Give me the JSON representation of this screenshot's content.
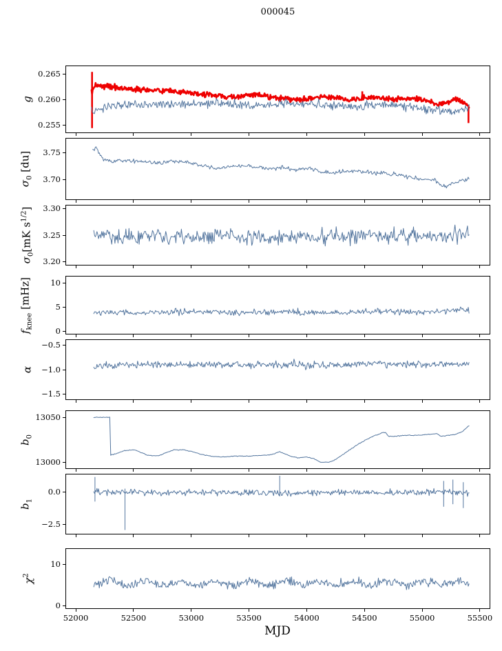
{
  "figure": {
    "title": "000045",
    "xlabel": "MJD"
  },
  "colors": {
    "blue": "#53759e",
    "red": "#ee0000",
    "axis": "#000000",
    "background": "#ffffff"
  },
  "x_axis": {
    "min": 51910,
    "max": 55590,
    "ticks": [
      {
        "v": 52000,
        "label": "52000"
      },
      {
        "v": 52500,
        "label": "52500"
      },
      {
        "v": 53000,
        "label": "53000"
      },
      {
        "v": 53500,
        "label": "53500"
      },
      {
        "v": 54000,
        "label": "54000"
      },
      {
        "v": 54500,
        "label": "54500"
      },
      {
        "v": 55000,
        "label": "55000"
      },
      {
        "v": 55500,
        "label": "55500"
      }
    ]
  },
  "chart_data": [
    {
      "name": "g",
      "type": "line",
      "ylabel": [
        {
          "t": "g",
          "italic": true
        }
      ],
      "ylim": [
        0.2535,
        0.2667
      ],
      "yticks": [
        {
          "v": 0.255,
          "label": "0.255"
        },
        {
          "v": 0.26,
          "label": "0.260"
        },
        {
          "v": 0.265,
          "label": "0.265"
        }
      ],
      "series": [
        {
          "name": "g-thick",
          "color": "red",
          "width": 2.6,
          "noise": 0.00045,
          "points": 650,
          "trend": [
            [
              52130,
              0.2615
            ],
            [
              52160,
              0.263
            ],
            [
              52250,
              0.2628
            ],
            [
              52500,
              0.2622
            ],
            [
              52800,
              0.2618
            ],
            [
              53100,
              0.2612
            ],
            [
              53350,
              0.2606
            ],
            [
              53550,
              0.2612
            ],
            [
              53750,
              0.2604
            ],
            [
              53950,
              0.2602
            ],
            [
              54150,
              0.2608
            ],
            [
              54350,
              0.2602
            ],
            [
              54550,
              0.2606
            ],
            [
              54750,
              0.2602
            ],
            [
              54950,
              0.2604
            ],
            [
              55050,
              0.2598
            ],
            [
              55150,
              0.2592
            ],
            [
              55250,
              0.26
            ],
            [
              55300,
              0.2604
            ],
            [
              55350,
              0.2596
            ],
            [
              55400,
              0.2588
            ]
          ],
          "spikes": [
            [
              52135,
              0.2546,
              0.2656
            ],
            [
              54475,
              0.26,
              0.2618
            ],
            [
              55395,
              0.2556,
              0.2592
            ]
          ]
        },
        {
          "name": "g-thin",
          "color": "blue",
          "width": 1,
          "noise": 0.00075,
          "points": 520,
          "trend": [
            [
              52130,
              0.2578
            ],
            [
              52300,
              0.259
            ],
            [
              52600,
              0.2594
            ],
            [
              52900,
              0.2592
            ],
            [
              53200,
              0.2596
            ],
            [
              53500,
              0.259
            ],
            [
              53800,
              0.2594
            ],
            [
              54100,
              0.2592
            ],
            [
              54400,
              0.2588
            ],
            [
              54700,
              0.2592
            ],
            [
              54900,
              0.2588
            ],
            [
              55100,
              0.2582
            ],
            [
              55250,
              0.2578
            ],
            [
              55400,
              0.2586
            ]
          ]
        }
      ]
    },
    {
      "name": "sigma0-du",
      "type": "line",
      "ylabel": [
        {
          "t": "σ",
          "italic": true
        },
        {
          "t": "0",
          "sub": true
        },
        {
          "t": " [du]"
        }
      ],
      "ylim": [
        3.662,
        3.778
      ],
      "yticks": [
        {
          "v": 3.7,
          "label": "3.70"
        },
        {
          "v": 3.75,
          "label": "3.75"
        }
      ],
      "series": [
        {
          "name": "sigma0-du",
          "color": "blue",
          "width": 1,
          "noise": 0.0032,
          "points": 450,
          "trend": [
            [
              52140,
              3.757
            ],
            [
              52170,
              3.762
            ],
            [
              52220,
              3.74
            ],
            [
              52300,
              3.735
            ],
            [
              52400,
              3.737
            ],
            [
              52500,
              3.736
            ],
            [
              52600,
              3.735
            ],
            [
              52700,
              3.733
            ],
            [
              52800,
              3.735
            ],
            [
              52900,
              3.736
            ],
            [
              53000,
              3.733
            ],
            [
              53100,
              3.727
            ],
            [
              53200,
              3.723
            ],
            [
              53300,
              3.725
            ],
            [
              53400,
              3.728
            ],
            [
              53500,
              3.726
            ],
            [
              53600,
              3.723
            ],
            [
              53700,
              3.722
            ],
            [
              53800,
              3.723
            ],
            [
              53900,
              3.72
            ],
            [
              54000,
              3.722
            ],
            [
              54100,
              3.717
            ],
            [
              54200,
              3.714
            ],
            [
              54300,
              3.716
            ],
            [
              54400,
              3.717
            ],
            [
              54500,
              3.716
            ],
            [
              54600,
              3.713
            ],
            [
              54700,
              3.712
            ],
            [
              54800,
              3.71
            ],
            [
              54900,
              3.705
            ],
            [
              55000,
              3.702
            ],
            [
              55100,
              3.7
            ],
            [
              55150,
              3.693
            ],
            [
              55200,
              3.688
            ],
            [
              55250,
              3.692
            ],
            [
              55300,
              3.697
            ],
            [
              55350,
              3.7
            ],
            [
              55400,
              3.702
            ]
          ]
        }
      ]
    },
    {
      "name": "sigma0-mk",
      "type": "line",
      "ylabel": [
        {
          "t": "σ",
          "italic": true
        },
        {
          "t": "0",
          "sub": true
        },
        {
          "t": "[mK s"
        },
        {
          "t": "1/2",
          "sup": true
        },
        {
          "t": "]"
        }
      ],
      "ylim": [
        3.193,
        3.307
      ],
      "yticks": [
        {
          "v": 3.2,
          "label": "3.20"
        },
        {
          "v": 3.25,
          "label": "3.25"
        },
        {
          "v": 3.3,
          "label": "3.30"
        }
      ],
      "series": [
        {
          "name": "sigma0-mk",
          "color": "blue",
          "width": 1,
          "noise": 0.012,
          "points": 480,
          "trend": [
            [
              52150,
              3.252
            ],
            [
              52400,
              3.245
            ],
            [
              52700,
              3.25
            ],
            [
              53000,
              3.246
            ],
            [
              53300,
              3.252
            ],
            [
              53600,
              3.246
            ],
            [
              53900,
              3.25
            ],
            [
              54200,
              3.247
            ],
            [
              54500,
              3.252
            ],
            [
              54800,
              3.248
            ],
            [
              55100,
              3.25
            ],
            [
              55400,
              3.25
            ]
          ]
        }
      ]
    },
    {
      "name": "fknee",
      "type": "line",
      "ylabel": [
        {
          "t": "f",
          "italic": true
        },
        {
          "t": "knee",
          "sub": true
        },
        {
          "t": " [mHz]"
        }
      ],
      "ylim": [
        -0.6,
        11.5
      ],
      "yticks": [
        {
          "v": 0,
          "label": "0"
        },
        {
          "v": 5,
          "label": "5"
        },
        {
          "v": 10,
          "label": "10"
        }
      ],
      "series": [
        {
          "name": "fknee",
          "color": "blue",
          "width": 1,
          "noise": 0.5,
          "points": 480,
          "trend": [
            [
              52150,
              4.2
            ],
            [
              52600,
              4.0
            ],
            [
              53000,
              4.3
            ],
            [
              53400,
              4.0
            ],
            [
              53800,
              4.2
            ],
            [
              54200,
              4.0
            ],
            [
              54600,
              4.3
            ],
            [
              55000,
              4.2
            ],
            [
              55400,
              4.6
            ]
          ]
        }
      ]
    },
    {
      "name": "alpha",
      "type": "line",
      "ylabel": [
        {
          "t": "α",
          "italic": true
        }
      ],
      "ylim": [
        -1.62,
        -0.38
      ],
      "yticks": [
        {
          "v": -1.5,
          "label": "−1.5"
        },
        {
          "v": -1.0,
          "label": "−1.0"
        },
        {
          "v": -0.5,
          "label": "−0.5"
        }
      ],
      "series": [
        {
          "name": "alpha",
          "color": "blue",
          "width": 1,
          "noise": 0.065,
          "points": 480,
          "trend": [
            [
              52150,
              -0.92
            ],
            [
              52600,
              -0.88
            ],
            [
              53100,
              -0.9
            ],
            [
              53600,
              -0.88
            ],
            [
              54100,
              -0.9
            ],
            [
              54600,
              -0.87
            ],
            [
              55100,
              -0.9
            ],
            [
              55400,
              -0.87
            ]
          ]
        }
      ]
    },
    {
      "name": "b0",
      "type": "line",
      "ylabel": [
        {
          "t": "b",
          "italic": true
        },
        {
          "t": "0",
          "sub": true
        }
      ],
      "ylim": [
        12993,
        13058
      ],
      "yticks": [
        {
          "v": 13000,
          "label": "13000"
        },
        {
          "v": 13050,
          "label": "13050"
        }
      ],
      "series": [
        {
          "name": "b0",
          "color": "blue",
          "width": 1,
          "noise": 0.35,
          "points": 400,
          "trend": [
            [
              52150,
              13051
            ],
            [
              52290,
              13051
            ],
            [
              52295,
              13009
            ],
            [
              52350,
              13011
            ],
            [
              52420,
              13014
            ],
            [
              52500,
              13015
            ],
            [
              52560,
              13012
            ],
            [
              52620,
              13009
            ],
            [
              52700,
              13008
            ],
            [
              52780,
              13012
            ],
            [
              52850,
              13015
            ],
            [
              52920,
              13015
            ],
            [
              53000,
              13013
            ],
            [
              53080,
              13010
            ],
            [
              53160,
              13008
            ],
            [
              53260,
              13007
            ],
            [
              53380,
              13008
            ],
            [
              53500,
              13008
            ],
            [
              53620,
              13009
            ],
            [
              53700,
              13010
            ],
            [
              53760,
              13013
            ],
            [
              53800,
              13011
            ],
            [
              53850,
              13008
            ],
            [
              53920,
              13006
            ],
            [
              54000,
              13007
            ],
            [
              54060,
              13005
            ],
            [
              54120,
              13001
            ],
            [
              54180,
              13001
            ],
            [
              54240,
              13004
            ],
            [
              54310,
              13010
            ],
            [
              54380,
              13016
            ],
            [
              54450,
              13022
            ],
            [
              54520,
              13027
            ],
            [
              54590,
              13031
            ],
            [
              54650,
              13034
            ],
            [
              54680,
              13034
            ],
            [
              54700,
              13030
            ],
            [
              54760,
              13030
            ],
            [
              54850,
              13031
            ],
            [
              54950,
              13031
            ],
            [
              55050,
              13032
            ],
            [
              55120,
              13033
            ],
            [
              55160,
              13030
            ],
            [
              55220,
              13031
            ],
            [
              55280,
              13032
            ],
            [
              55340,
              13035
            ],
            [
              55400,
              13042
            ]
          ]
        }
      ]
    },
    {
      "name": "b1",
      "type": "line",
      "ylabel": [
        {
          "t": "b",
          "italic": true
        },
        {
          "t": "1",
          "sub": true
        }
      ],
      "ylim": [
        -3.3,
        1.4
      ],
      "yticks": [
        {
          "v": -2.5,
          "label": "−2.5"
        },
        {
          "v": 0.0,
          "label": "0.0"
        }
      ],
      "series": [
        {
          "name": "b1",
          "color": "blue",
          "width": 1,
          "noise": 0.2,
          "points": 480,
          "trend": [
            [
              52150,
              0.1
            ],
            [
              52300,
              0.0
            ],
            [
              55400,
              0.0
            ]
          ],
          "spikes": [
            [
              52160,
              -0.7,
              1.2
            ],
            [
              52420,
              -2.9,
              0.3
            ],
            [
              53760,
              -0.3,
              1.3
            ],
            [
              55180,
              -1.1,
              0.9
            ],
            [
              55260,
              -0.9,
              1.0
            ],
            [
              55350,
              -1.2,
              0.8
            ]
          ]
        }
      ]
    },
    {
      "name": "chi2",
      "type": "line",
      "ylabel": [
        {
          "t": "χ",
          "italic": true
        },
        {
          "t": "2",
          "sup": true
        }
      ],
      "ylim": [
        -0.7,
        13.8
      ],
      "yticks": [
        {
          "v": 0,
          "label": "0"
        },
        {
          "v": 10,
          "label": "10"
        }
      ],
      "series": [
        {
          "name": "chi2",
          "color": "blue",
          "width": 1,
          "noise": 0.85,
          "points": 480,
          "trend": [
            [
              52150,
              5.2
            ],
            [
              52300,
              6.4
            ],
            [
              52450,
              4.9
            ],
            [
              52600,
              6.2
            ],
            [
              52750,
              5.0
            ],
            [
              52900,
              6.3
            ],
            [
              53050,
              4.9
            ],
            [
              53200,
              6.1
            ],
            [
              53350,
              5.0
            ],
            [
              53500,
              6.3
            ],
            [
              53650,
              4.8
            ],
            [
              53800,
              6.2
            ],
            [
              53950,
              5.1
            ],
            [
              54100,
              6.0
            ],
            [
              54250,
              4.9
            ],
            [
              54400,
              6.2
            ],
            [
              54550,
              5.0
            ],
            [
              54700,
              6.4
            ],
            [
              54850,
              5.0
            ],
            [
              55000,
              6.2
            ],
            [
              55150,
              5.1
            ],
            [
              55300,
              6.3
            ],
            [
              55400,
              5.6
            ]
          ]
        }
      ]
    }
  ]
}
